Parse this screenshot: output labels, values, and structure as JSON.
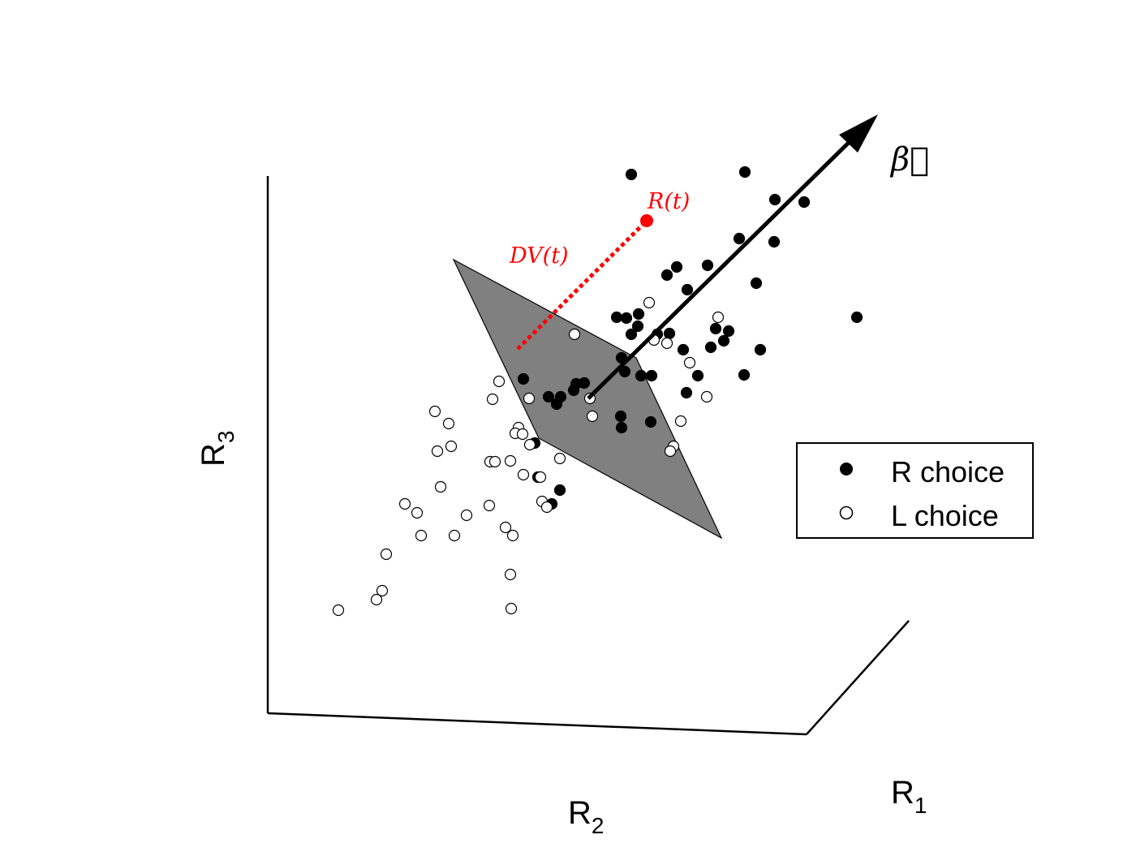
{
  "chart_data": {
    "type": "scatter",
    "projection": "3d",
    "axes": {
      "x": {
        "label": "R",
        "subscript": "1"
      },
      "y": {
        "label": "R",
        "subscript": "2"
      },
      "z": {
        "label": "R",
        "subscript": "3"
      }
    },
    "grid": false,
    "legend": {
      "placement": "right",
      "entries": [
        {
          "label": "R choice",
          "marker": "filled-circle"
        },
        {
          "label": "L choice",
          "marker": "open-circle"
        }
      ]
    },
    "annotations": {
      "beta_vector": {
        "label": "β⃗",
        "color": "#000000"
      },
      "state_point": {
        "label": "R(t)",
        "color": "#ff0000"
      },
      "decision_variable": {
        "label": "DV(t)",
        "color": "#ff0000",
        "style": "dotted"
      },
      "decision_plane": {
        "color": "#808080"
      }
    },
    "series": [
      {
        "name": "R choice",
        "fill": "#000000",
        "points": [
          [
            778,
            215
          ],
          [
            918,
            212
          ],
          [
            955,
            246
          ],
          [
            991,
            249
          ],
          [
            911,
            294
          ],
          [
            954,
            298
          ],
          [
            872,
            327
          ],
          [
            834,
            329
          ],
          [
            822,
            339
          ],
          [
            932,
            349
          ],
          [
            847,
            357
          ],
          [
            1056,
            391
          ],
          [
            760,
            391
          ],
          [
            772,
            392
          ],
          [
            787,
            387
          ],
          [
            778,
            412
          ],
          [
            786,
            402
          ],
          [
            810,
            412
          ],
          [
            825,
            411
          ],
          [
            882,
            405
          ],
          [
            898,
            408
          ],
          [
            892,
            420
          ],
          [
            876,
            428
          ],
          [
            937,
            431
          ],
          [
            842,
            431
          ],
          [
            766,
            441
          ],
          [
            770,
            458
          ],
          [
            790,
            463
          ],
          [
            803,
            463
          ],
          [
            860,
            463
          ],
          [
            917,
            462
          ],
          [
            645,
            467
          ],
          [
            710,
            473
          ],
          [
            720,
            472
          ],
          [
            707,
            481
          ],
          [
            676,
            489
          ],
          [
            691,
            489
          ],
          [
            686,
            498
          ],
          [
            846,
            484
          ],
          [
            765,
            513
          ],
          [
            766,
            527
          ],
          [
            802,
            520
          ],
          [
            659,
            546
          ],
          [
            663,
            588
          ],
          [
            690,
            604
          ],
          [
            680,
            621
          ]
        ]
      },
      {
        "name": "L choice",
        "fill": "none",
        "points": [
          [
            800,
            373
          ],
          [
            885,
            391
          ],
          [
            708,
            412
          ],
          [
            806,
            419
          ],
          [
            822,
            423
          ],
          [
            850,
            447
          ],
          [
            615,
            470
          ],
          [
            607,
            492
          ],
          [
            652,
            491
          ],
          [
            727,
            491
          ],
          [
            871,
            489
          ],
          [
            730,
            513
          ],
          [
            839,
            519
          ],
          [
            536,
            507
          ],
          [
            553,
            522
          ],
          [
            639,
            527
          ],
          [
            635,
            534
          ],
          [
            644,
            535
          ],
          [
            556,
            550
          ],
          [
            539,
            556
          ],
          [
            653,
            548
          ],
          [
            830,
            550
          ],
          [
            826,
            556
          ],
          [
            604,
            569
          ],
          [
            610,
            569
          ],
          [
            629,
            568
          ],
          [
            690,
            565
          ],
          [
            645,
            585
          ],
          [
            543,
            600
          ],
          [
            666,
            588
          ],
          [
            499,
            621
          ],
          [
            514,
            632
          ],
          [
            603,
            623
          ],
          [
            668,
            618
          ],
          [
            674,
            625
          ],
          [
            575,
            635
          ],
          [
            623,
            650
          ],
          [
            632,
            660
          ],
          [
            519,
            660
          ],
          [
            560,
            660
          ],
          [
            476,
            683
          ],
          [
            629,
            708
          ],
          [
            471,
            728
          ],
          [
            464,
            739
          ],
          [
            417,
            752
          ],
          [
            630,
            750
          ]
        ]
      }
    ]
  }
}
